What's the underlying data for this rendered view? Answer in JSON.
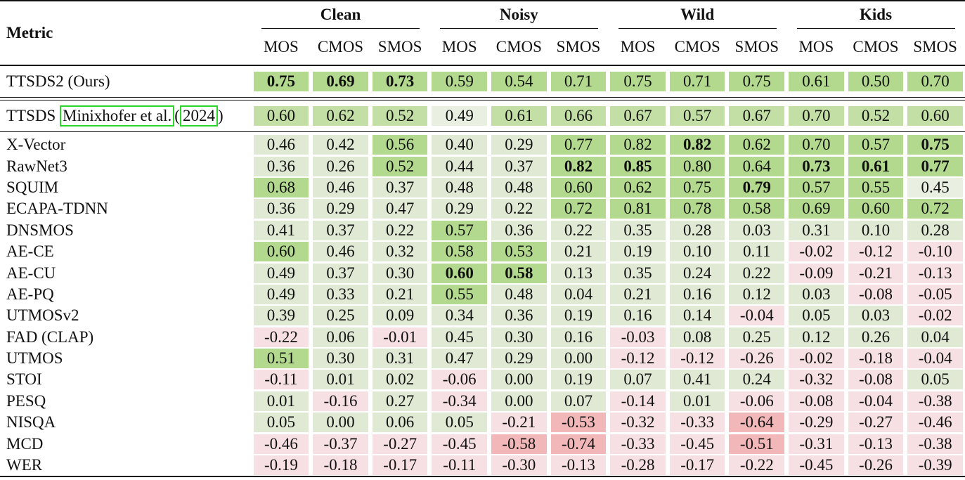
{
  "header": {
    "metric_label": "Metric",
    "groups": [
      "Clean",
      "Noisy",
      "Wild",
      "Kids"
    ],
    "subcols": [
      "MOS",
      "CMOS",
      "SMOS",
      "MOS",
      "CMOS",
      "SMOS",
      "MOS",
      "CMOS",
      "SMOS",
      "MOS",
      "CMOS",
      "SMOS"
    ]
  },
  "highlight_colors": {
    "strong_positive": "#b3d98e",
    "positive": "#dfe9d4",
    "weak_positive": "#e9f0e2",
    "weak_negative": "#f6e0e3",
    "strong_negative": "#f2b8b9",
    "citation_box": "#2bd62b"
  },
  "ttsds2": {
    "name": "TTSDS2 (Ours)",
    "values": [
      "0.75",
      "0.69",
      "0.73",
      "0.59",
      "0.54",
      "0.71",
      "0.75",
      "0.71",
      "0.75",
      "0.61",
      "0.50",
      "0.70"
    ]
  },
  "ttsds": {
    "name": "TTSDS",
    "cite_author": "Minixhofer et al.",
    "cite_paren_open": "(",
    "cite_year": "2024",
    "cite_paren_close": ")",
    "values": [
      "0.60",
      "0.62",
      "0.52",
      "0.49",
      "0.61",
      "0.66",
      "0.67",
      "0.57",
      "0.67",
      "0.70",
      "0.52",
      "0.60"
    ]
  },
  "rows": [
    {
      "name": "X-Vector",
      "values": [
        "0.46",
        "0.42",
        "0.56",
        "0.40",
        "0.29",
        "0.77",
        "0.82",
        "0.82",
        "0.62",
        "0.70",
        "0.57",
        "0.75"
      ]
    },
    {
      "name": "RawNet3",
      "values": [
        "0.36",
        "0.26",
        "0.52",
        "0.44",
        "0.37",
        "0.82",
        "0.85",
        "0.80",
        "0.64",
        "0.73",
        "0.61",
        "0.77"
      ]
    },
    {
      "name": "SQUIM",
      "values": [
        "0.68",
        "0.46",
        "0.37",
        "0.48",
        "0.48",
        "0.60",
        "0.62",
        "0.75",
        "0.79",
        "0.57",
        "0.55",
        "0.45"
      ]
    },
    {
      "name": "ECAPA-TDNN",
      "values": [
        "0.36",
        "0.29",
        "0.47",
        "0.29",
        "0.22",
        "0.72",
        "0.81",
        "0.78",
        "0.58",
        "0.69",
        "0.60",
        "0.72"
      ]
    },
    {
      "name": "DNSMOS",
      "values": [
        "0.41",
        "0.37",
        "0.22",
        "0.57",
        "0.36",
        "0.22",
        "0.35",
        "0.28",
        "0.03",
        "0.31",
        "0.10",
        "0.28"
      ]
    },
    {
      "name": "AE-CE",
      "values": [
        "0.60",
        "0.46",
        "0.32",
        "0.58",
        "0.53",
        "0.21",
        "0.19",
        "0.10",
        "0.11",
        "-0.02",
        "-0.12",
        "-0.10"
      ]
    },
    {
      "name": "AE-CU",
      "values": [
        "0.49",
        "0.37",
        "0.30",
        "0.60",
        "0.58",
        "0.13",
        "0.35",
        "0.24",
        "0.22",
        "-0.09",
        "-0.21",
        "-0.13"
      ]
    },
    {
      "name": "AE-PQ",
      "values": [
        "0.49",
        "0.33",
        "0.21",
        "0.55",
        "0.48",
        "0.04",
        "0.21",
        "0.16",
        "0.12",
        "0.03",
        "-0.08",
        "-0.05"
      ]
    },
    {
      "name": "UTMOSv2",
      "values": [
        "0.39",
        "0.25",
        "0.09",
        "0.34",
        "0.36",
        "0.19",
        "0.16",
        "0.14",
        "-0.04",
        "0.05",
        "0.03",
        "-0.02"
      ]
    },
    {
      "name": "FAD (CLAP)",
      "values": [
        "-0.22",
        "0.06",
        "-0.01",
        "0.45",
        "0.30",
        "0.16",
        "-0.03",
        "0.08",
        "0.25",
        "0.12",
        "0.26",
        "0.04"
      ]
    },
    {
      "name": "UTMOS",
      "values": [
        "0.51",
        "0.30",
        "0.31",
        "0.47",
        "0.29",
        "0.00",
        "-0.12",
        "-0.12",
        "-0.26",
        "-0.02",
        "-0.18",
        "-0.04"
      ]
    },
    {
      "name": "STOI",
      "values": [
        "-0.11",
        "0.01",
        "0.02",
        "-0.06",
        "0.00",
        "0.19",
        "0.07",
        "0.41",
        "0.24",
        "-0.32",
        "-0.08",
        "0.05"
      ]
    },
    {
      "name": "PESQ",
      "values": [
        "0.01",
        "-0.16",
        "0.27",
        "-0.34",
        "0.00",
        "0.07",
        "-0.14",
        "0.01",
        "-0.06",
        "-0.08",
        "-0.04",
        "-0.38"
      ]
    },
    {
      "name": "NISQA",
      "values": [
        "0.05",
        "0.00",
        "0.06",
        "0.05",
        "-0.21",
        "-0.53",
        "-0.32",
        "-0.33",
        "-0.64",
        "-0.29",
        "-0.27",
        "-0.46"
      ]
    },
    {
      "name": "MCD",
      "values": [
        "-0.46",
        "-0.37",
        "-0.27",
        "-0.45",
        "-0.58",
        "-0.74",
        "-0.33",
        "-0.45",
        "-0.51",
        "-0.31",
        "-0.13",
        "-0.38"
      ]
    },
    {
      "name": "WER",
      "values": [
        "-0.19",
        "-0.18",
        "-0.17",
        "-0.11",
        "-0.30",
        "-0.13",
        "-0.28",
        "-0.17",
        "-0.22",
        "-0.45",
        "-0.26",
        "-0.39"
      ]
    }
  ]
}
